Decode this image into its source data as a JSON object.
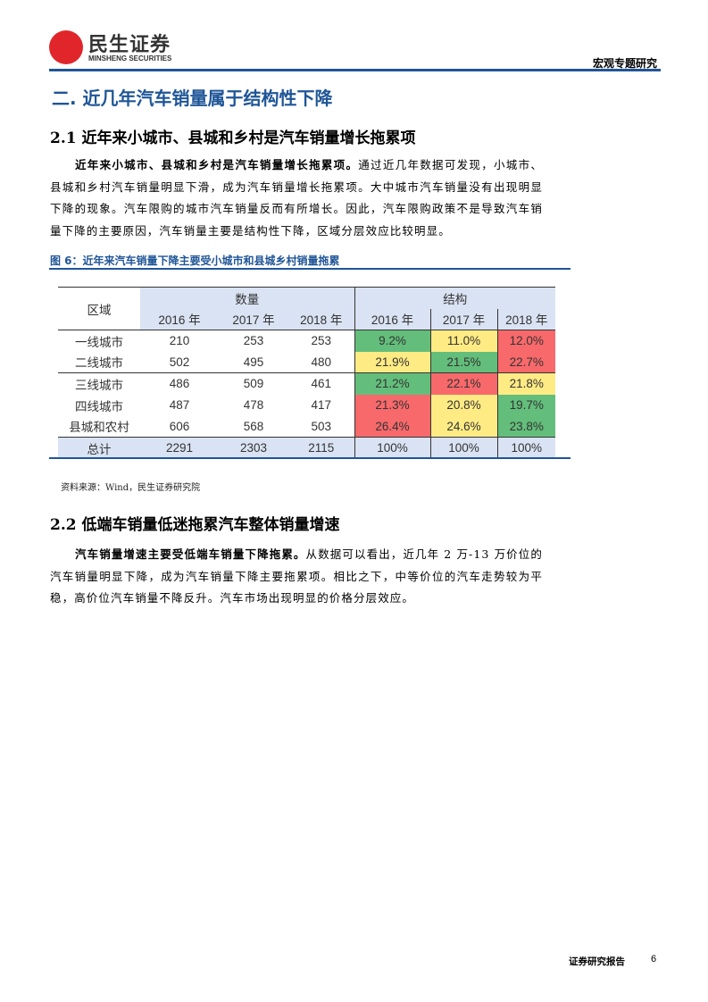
{
  "header": {
    "logo_cn": "民生证券",
    "logo_en": "MINSHENG SECURITIES",
    "report_type": "宏观专题研究"
  },
  "section_title": "二. 近几年汽车销量属于结构性下降",
  "sub1": {
    "title": "2.1 近年来小城市、县城和乡村是汽车销量增长拖累项",
    "lead": "近年来小城市、县城和乡村是汽车销量增长拖累项。",
    "body": "通过近几年数据可发现，小城市、县城和乡村汽车销量明显下滑，成为汽车销量增长拖累项。大中城市汽车销量没有出现明显下降的现象。汽车限购的城市汽车销量反而有所增长。因此，汽车限购政策不是导致汽车销量下降的主要原因，汽车销量主要是结构性下降，区域分层效应比较明显。"
  },
  "figure": {
    "caption": "图 6：近年来汽车销量下降主要受小城市和县城乡村销量拖累",
    "source": "资料来源：Wind，民生证券研究院",
    "table": {
      "region_header": "区域",
      "qty_header": "数量",
      "struct_header": "结构",
      "years": [
        "2016 年",
        "2017 年",
        "2018 年"
      ],
      "rows": [
        {
          "region": "一线城市",
          "qty": [
            "210",
            "253",
            "253"
          ],
          "struct": [
            "9.2%",
            "11.0%",
            "12.0%"
          ],
          "colors": [
            "green",
            "yellow",
            "red"
          ]
        },
        {
          "region": "二线城市",
          "qty": [
            "502",
            "495",
            "480"
          ],
          "struct": [
            "21.9%",
            "21.5%",
            "22.7%"
          ],
          "colors": [
            "yellow",
            "green",
            "red"
          ]
        },
        {
          "region": "三线城市",
          "qty": [
            "486",
            "509",
            "461"
          ],
          "struct": [
            "21.2%",
            "22.1%",
            "21.8%"
          ],
          "colors": [
            "green",
            "red",
            "yellow"
          ]
        },
        {
          "region": "四线城市",
          "qty": [
            "487",
            "478",
            "417"
          ],
          "struct": [
            "21.3%",
            "20.8%",
            "19.7%"
          ],
          "colors": [
            "red",
            "yellow",
            "green"
          ]
        },
        {
          "region": "县城和农村",
          "qty": [
            "606",
            "568",
            "503"
          ],
          "struct": [
            "26.4%",
            "24.6%",
            "23.8%"
          ],
          "colors": [
            "red",
            "yellow",
            "green"
          ]
        }
      ],
      "total": {
        "region": "总计",
        "qty": [
          "2291",
          "2303",
          "2115"
        ],
        "struct": [
          "100%",
          "100%",
          "100%"
        ]
      },
      "heat_colors": {
        "green": "#63be7b",
        "yellow": "#ffeb84",
        "red": "#f8696b"
      }
    }
  },
  "sub2": {
    "title": "2.2 低端车销量低迷拖累汽车整体销量增速",
    "lead": "汽车销量增速主要受低端车销量下降拖累。",
    "body": "从数据可以看出，近几年 2 万-13 万价位的汽车销量明显下降，成为汽车销量下降主要拖累项。相比之下，中等价位的汽车走势较为平稳，高价位汽车销量不降反升。汽车市场出现明显的价格分层效应。"
  },
  "footer": {
    "label": "证券研究报告",
    "page": "6"
  },
  "colors": {
    "brand_blue": "#1f5597",
    "logo_red": "#e0262b"
  }
}
